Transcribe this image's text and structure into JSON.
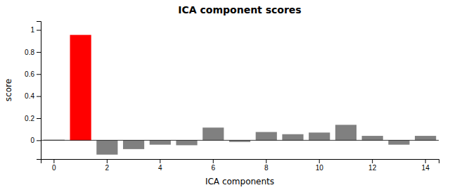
{
  "chart_data": {
    "type": "bar",
    "title": "ICA component scores",
    "x_label": "ICA components",
    "y_label": "score",
    "categories": [
      "0",
      null,
      "2",
      null,
      "4",
      null,
      "6",
      null,
      "8",
      null,
      "10",
      null,
      "12",
      null,
      "14"
    ],
    "values": [
      0.005,
      0.955,
      -0.13,
      -0.08,
      -0.04,
      -0.045,
      0.115,
      -0.015,
      0.075,
      0.055,
      0.07,
      0.14,
      0.04,
      -0.04,
      0.04
    ],
    "colors": [
      "gray",
      "red",
      "gray",
      "gray",
      "gray",
      "gray",
      "gray",
      "gray",
      "gray",
      "gray",
      "gray",
      "gray",
      "gray",
      "gray",
      "gray"
    ],
    "ylim": [
      -0.17,
      1.08
    ],
    "yticks": [
      0,
      0.2,
      0.4,
      0.6,
      0.8,
      1
    ],
    "grid": false
  }
}
